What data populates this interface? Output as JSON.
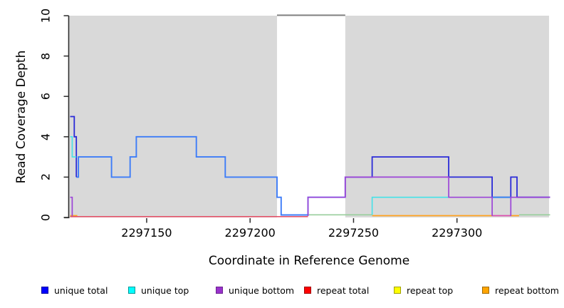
{
  "chart_data": {
    "type": "line",
    "subtype": "step-coverage-plot",
    "title": "",
    "xlabel": "Coordinate in Reference Genome",
    "ylabel": "Read Coverage Depth",
    "xlim": [
      2297112.5,
      2297344.5
    ],
    "ylim": [
      0,
      10
    ],
    "xticks": [
      2297150,
      2297200,
      2297250,
      2297300
    ],
    "xtick_labels": [
      "2297150",
      "2297200",
      "2297250",
      "2297300"
    ],
    "yticks": [
      0,
      2,
      4,
      6,
      8,
      10
    ],
    "ytick_labels": [
      "0",
      "2",
      "4",
      "6",
      "8",
      "10"
    ],
    "grid": false,
    "plot_bg_color": "#D9D9D9",
    "masked_region": {
      "start": 2297213,
      "end": 2297246,
      "fill": "#FFFFFF",
      "top_edge_color": "#7F7F7F"
    },
    "legend_position": "bottom",
    "legend": [
      {
        "label": "unique total",
        "color": "#0000FF",
        "border": "#0000A0"
      },
      {
        "label": "unique top",
        "color": "#00FFFF",
        "border": "#009898"
      },
      {
        "label": "unique bottom",
        "color": "#9932CC",
        "border": "#6C2390"
      },
      {
        "label": "repeat total",
        "color": "#FF0000",
        "border": "#A00000"
      },
      {
        "label": "repeat top",
        "color": "#FFFF00",
        "border": "#A0A000"
      },
      {
        "label": "repeat bottom",
        "color": "#FFA500",
        "border": "#A06A00"
      }
    ],
    "steps_format": "[coordinate, depth] — depth holds from this coordinate until the next breakpoint",
    "series": [
      {
        "name": "unique total",
        "color": "#0000FF",
        "steps": [
          [
            2297113,
            5
          ],
          [
            2297115,
            4
          ],
          [
            2297116,
            2
          ],
          [
            2297117,
            3
          ],
          [
            2297133,
            2
          ],
          [
            2297142,
            3
          ],
          [
            2297145,
            4
          ],
          [
            2297174,
            3
          ],
          [
            2297188,
            2
          ],
          [
            2297213,
            1
          ],
          [
            2297215,
            0
          ],
          [
            2297228,
            1
          ],
          [
            2297246,
            2
          ],
          [
            2297259,
            3
          ],
          [
            2297296,
            2
          ],
          [
            2297317,
            1
          ],
          [
            2297326,
            2
          ],
          [
            2297329,
            1
          ],
          [
            2297345,
            1
          ]
        ]
      },
      {
        "name": "unique top",
        "color": "#00FFFF",
        "steps": [
          [
            2297113,
            4
          ],
          [
            2297114,
            3
          ],
          [
            2297116,
            2
          ],
          [
            2297117,
            3
          ],
          [
            2297133,
            2
          ],
          [
            2297142,
            3
          ],
          [
            2297145,
            4
          ],
          [
            2297174,
            3
          ],
          [
            2297188,
            2
          ],
          [
            2297213,
            1
          ],
          [
            2297215,
            0
          ],
          [
            2297259,
            1
          ],
          [
            2297330,
            0
          ],
          [
            2297345,
            0
          ]
        ]
      },
      {
        "name": "unique bottom",
        "color": "#9932CC",
        "steps": [
          [
            2297113,
            1
          ],
          [
            2297114,
            0
          ],
          [
            2297228,
            1
          ],
          [
            2297246,
            2
          ],
          [
            2297296,
            1
          ],
          [
            2297317,
            0
          ],
          [
            2297326,
            1
          ],
          [
            2297345,
            1
          ]
        ]
      },
      {
        "name": "repeat total",
        "color": "#FF0000",
        "steps": [
          [
            2297113,
            0
          ],
          [
            2297345,
            0
          ]
        ]
      },
      {
        "name": "repeat top",
        "color": "#FFFF00",
        "steps": [
          [
            2297113,
            0
          ],
          [
            2297345,
            0
          ]
        ]
      },
      {
        "name": "repeat bottom",
        "color": "#FFA500",
        "steps": [
          [
            2297113,
            0
          ],
          [
            2297345,
            0
          ]
        ]
      }
    ],
    "rendered_segments_note": "visible polylines as drawn on screen (overlap blends); dy0 = pixel lift applied to depth-0 values",
    "rendered_segments": [
      {
        "id": "baseline-green-left",
        "color": "#98CE9C",
        "width": 1.6,
        "dy0": 3.7,
        "points": [
          [
            2297228,
            0
          ],
          [
            2297259,
            0
          ]
        ]
      },
      {
        "id": "baseline-green-right",
        "color": "#98CE9C",
        "width": 1.6,
        "dy0": 3.7,
        "points": [
          [
            2297330,
            0
          ],
          [
            2297345,
            0
          ]
        ]
      },
      {
        "id": "baseline-orange-left",
        "color": "#FFA21F",
        "width": 1.8,
        "dy0": 2.5,
        "points": [
          [
            2297113,
            0
          ],
          [
            2297116.5,
            0
          ]
        ]
      },
      {
        "id": "baseline-orange-mid",
        "color": "#FFA21F",
        "width": 1.8,
        "dy0": 2.5,
        "points": [
          [
            2297259,
            0
          ],
          [
            2297317,
            0
          ]
        ]
      },
      {
        "id": "baseline-orange-right",
        "color": "#FFA21F",
        "width": 1.8,
        "dy0": 2.5,
        "points": [
          [
            2297326,
            0
          ],
          [
            2297330,
            0
          ]
        ]
      },
      {
        "id": "baseline-magenta",
        "color": "#DC4FAE",
        "width": 1.8,
        "dy0": 2.5,
        "points": [
          [
            2297317,
            0
          ],
          [
            2297326,
            0
          ]
        ]
      },
      {
        "id": "baseline-red",
        "color": "#E4556B",
        "width": 1.7,
        "dy0": 1.2,
        "points": [
          [
            2297113,
            0
          ],
          [
            2297228,
            0
          ]
        ]
      },
      {
        "id": "unique-total-top-azure",
        "color": "#3D7CF8",
        "width": 1.9,
        "dy0": 3.5,
        "points": [
          [
            2297116,
            2
          ],
          [
            2297117,
            2
          ],
          [
            2297117,
            3
          ],
          [
            2297133,
            3
          ],
          [
            2297133,
            2
          ],
          [
            2297142,
            2
          ],
          [
            2297142,
            3
          ],
          [
            2297145,
            3
          ],
          [
            2297145,
            4
          ],
          [
            2297174,
            4
          ],
          [
            2297174,
            3
          ],
          [
            2297188,
            3
          ],
          [
            2297188,
            2
          ],
          [
            2297213,
            2
          ],
          [
            2297213,
            1
          ],
          [
            2297215,
            1
          ],
          [
            2297215,
            0
          ],
          [
            2297228,
            0
          ],
          [
            2297228,
            1
          ],
          [
            2297246,
            1
          ]
        ]
      },
      {
        "id": "unique-total-navy-spike",
        "color": "#2A2AD8",
        "width": 1.8,
        "dy0": 0,
        "points": [
          [
            2297113,
            5
          ],
          [
            2297115,
            5
          ],
          [
            2297115,
            4
          ],
          [
            2297116,
            4
          ],
          [
            2297116,
            2
          ]
        ]
      },
      {
        "id": "unique-total-navy-right",
        "color": "#2A2AD8",
        "width": 1.8,
        "dy0": 0,
        "points": [
          [
            2297246,
            1
          ],
          [
            2297246,
            2
          ],
          [
            2297259,
            2
          ],
          [
            2297259,
            3
          ],
          [
            2297296,
            3
          ],
          [
            2297296,
            2
          ],
          [
            2297317,
            2
          ],
          [
            2297317,
            1
          ],
          [
            2297326,
            1
          ],
          [
            2297326,
            2
          ],
          [
            2297329,
            2
          ],
          [
            2297329,
            1
          ],
          [
            2297345,
            1
          ]
        ]
      },
      {
        "id": "azure-depth1-right",
        "color": "#3D8CF2",
        "width": 1.8,
        "dy0": 0,
        "points": [
          [
            2297317,
            1
          ],
          [
            2297326,
            1
          ]
        ]
      },
      {
        "id": "cyan-left",
        "color": "#45E2E8",
        "width": 1.6,
        "dy0": 0,
        "points": [
          [
            2297113,
            4
          ],
          [
            2297114,
            4
          ],
          [
            2297114,
            3
          ],
          [
            2297116,
            3
          ]
        ]
      },
      {
        "id": "cyan-right",
        "color": "#45E2E8",
        "width": 1.6,
        "dy0": 3.5,
        "points": [
          [
            2297259,
            0
          ],
          [
            2297259,
            1
          ],
          [
            2297296,
            1
          ]
        ]
      },
      {
        "id": "purple-left-drop",
        "color": "#9C45D8",
        "width": 1.7,
        "dy0": 2.0,
        "points": [
          [
            2297113,
            1
          ],
          [
            2297114,
            1
          ],
          [
            2297114,
            0
          ]
        ]
      },
      {
        "id": "purple-main",
        "color": "#9C45D8",
        "width": 1.7,
        "dy0": 2.0,
        "points": [
          [
            2297228,
            0
          ],
          [
            2297228,
            1
          ],
          [
            2297246,
            1
          ],
          [
            2297246,
            2
          ],
          [
            2297296,
            2
          ],
          [
            2297296,
            1
          ],
          [
            2297317,
            1
          ],
          [
            2297317,
            0
          ]
        ]
      },
      {
        "id": "purple-right",
        "color": "#9C45D8",
        "width": 1.7,
        "dy0": 2.0,
        "points": [
          [
            2297326,
            0
          ],
          [
            2297326,
            1
          ],
          [
            2297345,
            1
          ]
        ]
      }
    ]
  }
}
